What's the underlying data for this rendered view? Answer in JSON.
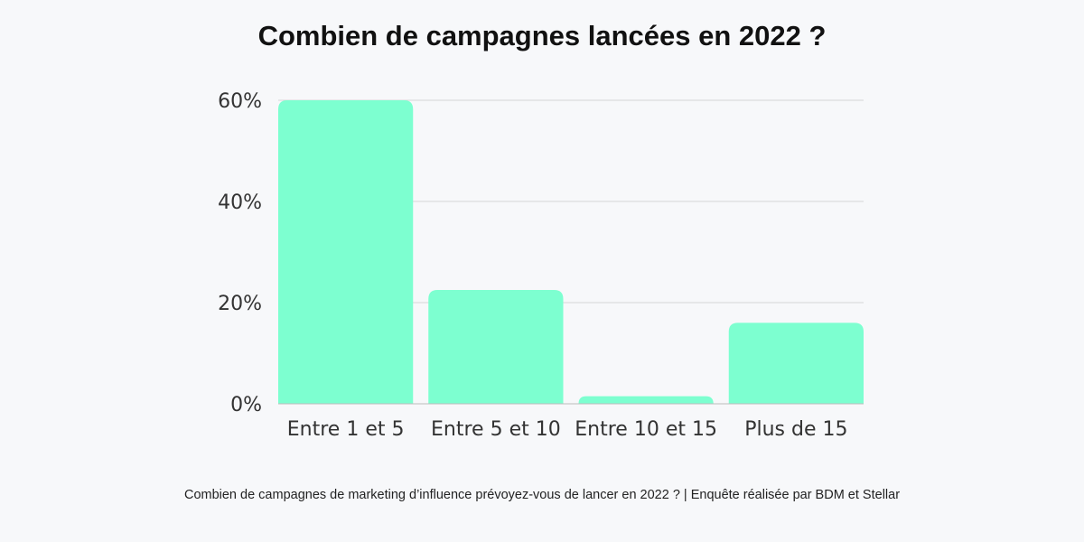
{
  "title": "Combien de campagnes lancées en 2022 ?",
  "caption": "Combien de campagnes de marketing d’influence prévoyez-vous de lancer en 2022 ? | Enquête réalisée par BDM et Stellar",
  "chart_data": {
    "type": "bar",
    "title": "Combien de campagnes lancées en 2022 ?",
    "categories": [
      "Entre 1 et 5",
      "Entre 5 et 10",
      "Entre 10 et 15",
      "Plus de 15"
    ],
    "values": [
      60,
      22.5,
      1.5,
      16
    ],
    "ylim": [
      0,
      60
    ],
    "yticks": [
      0,
      20,
      40,
      60
    ],
    "ytick_labels": [
      "0%",
      "20%",
      "40%",
      "60%"
    ],
    "grid": true,
    "bar_color": "#7dffd0",
    "xlabel": "",
    "ylabel": ""
  }
}
